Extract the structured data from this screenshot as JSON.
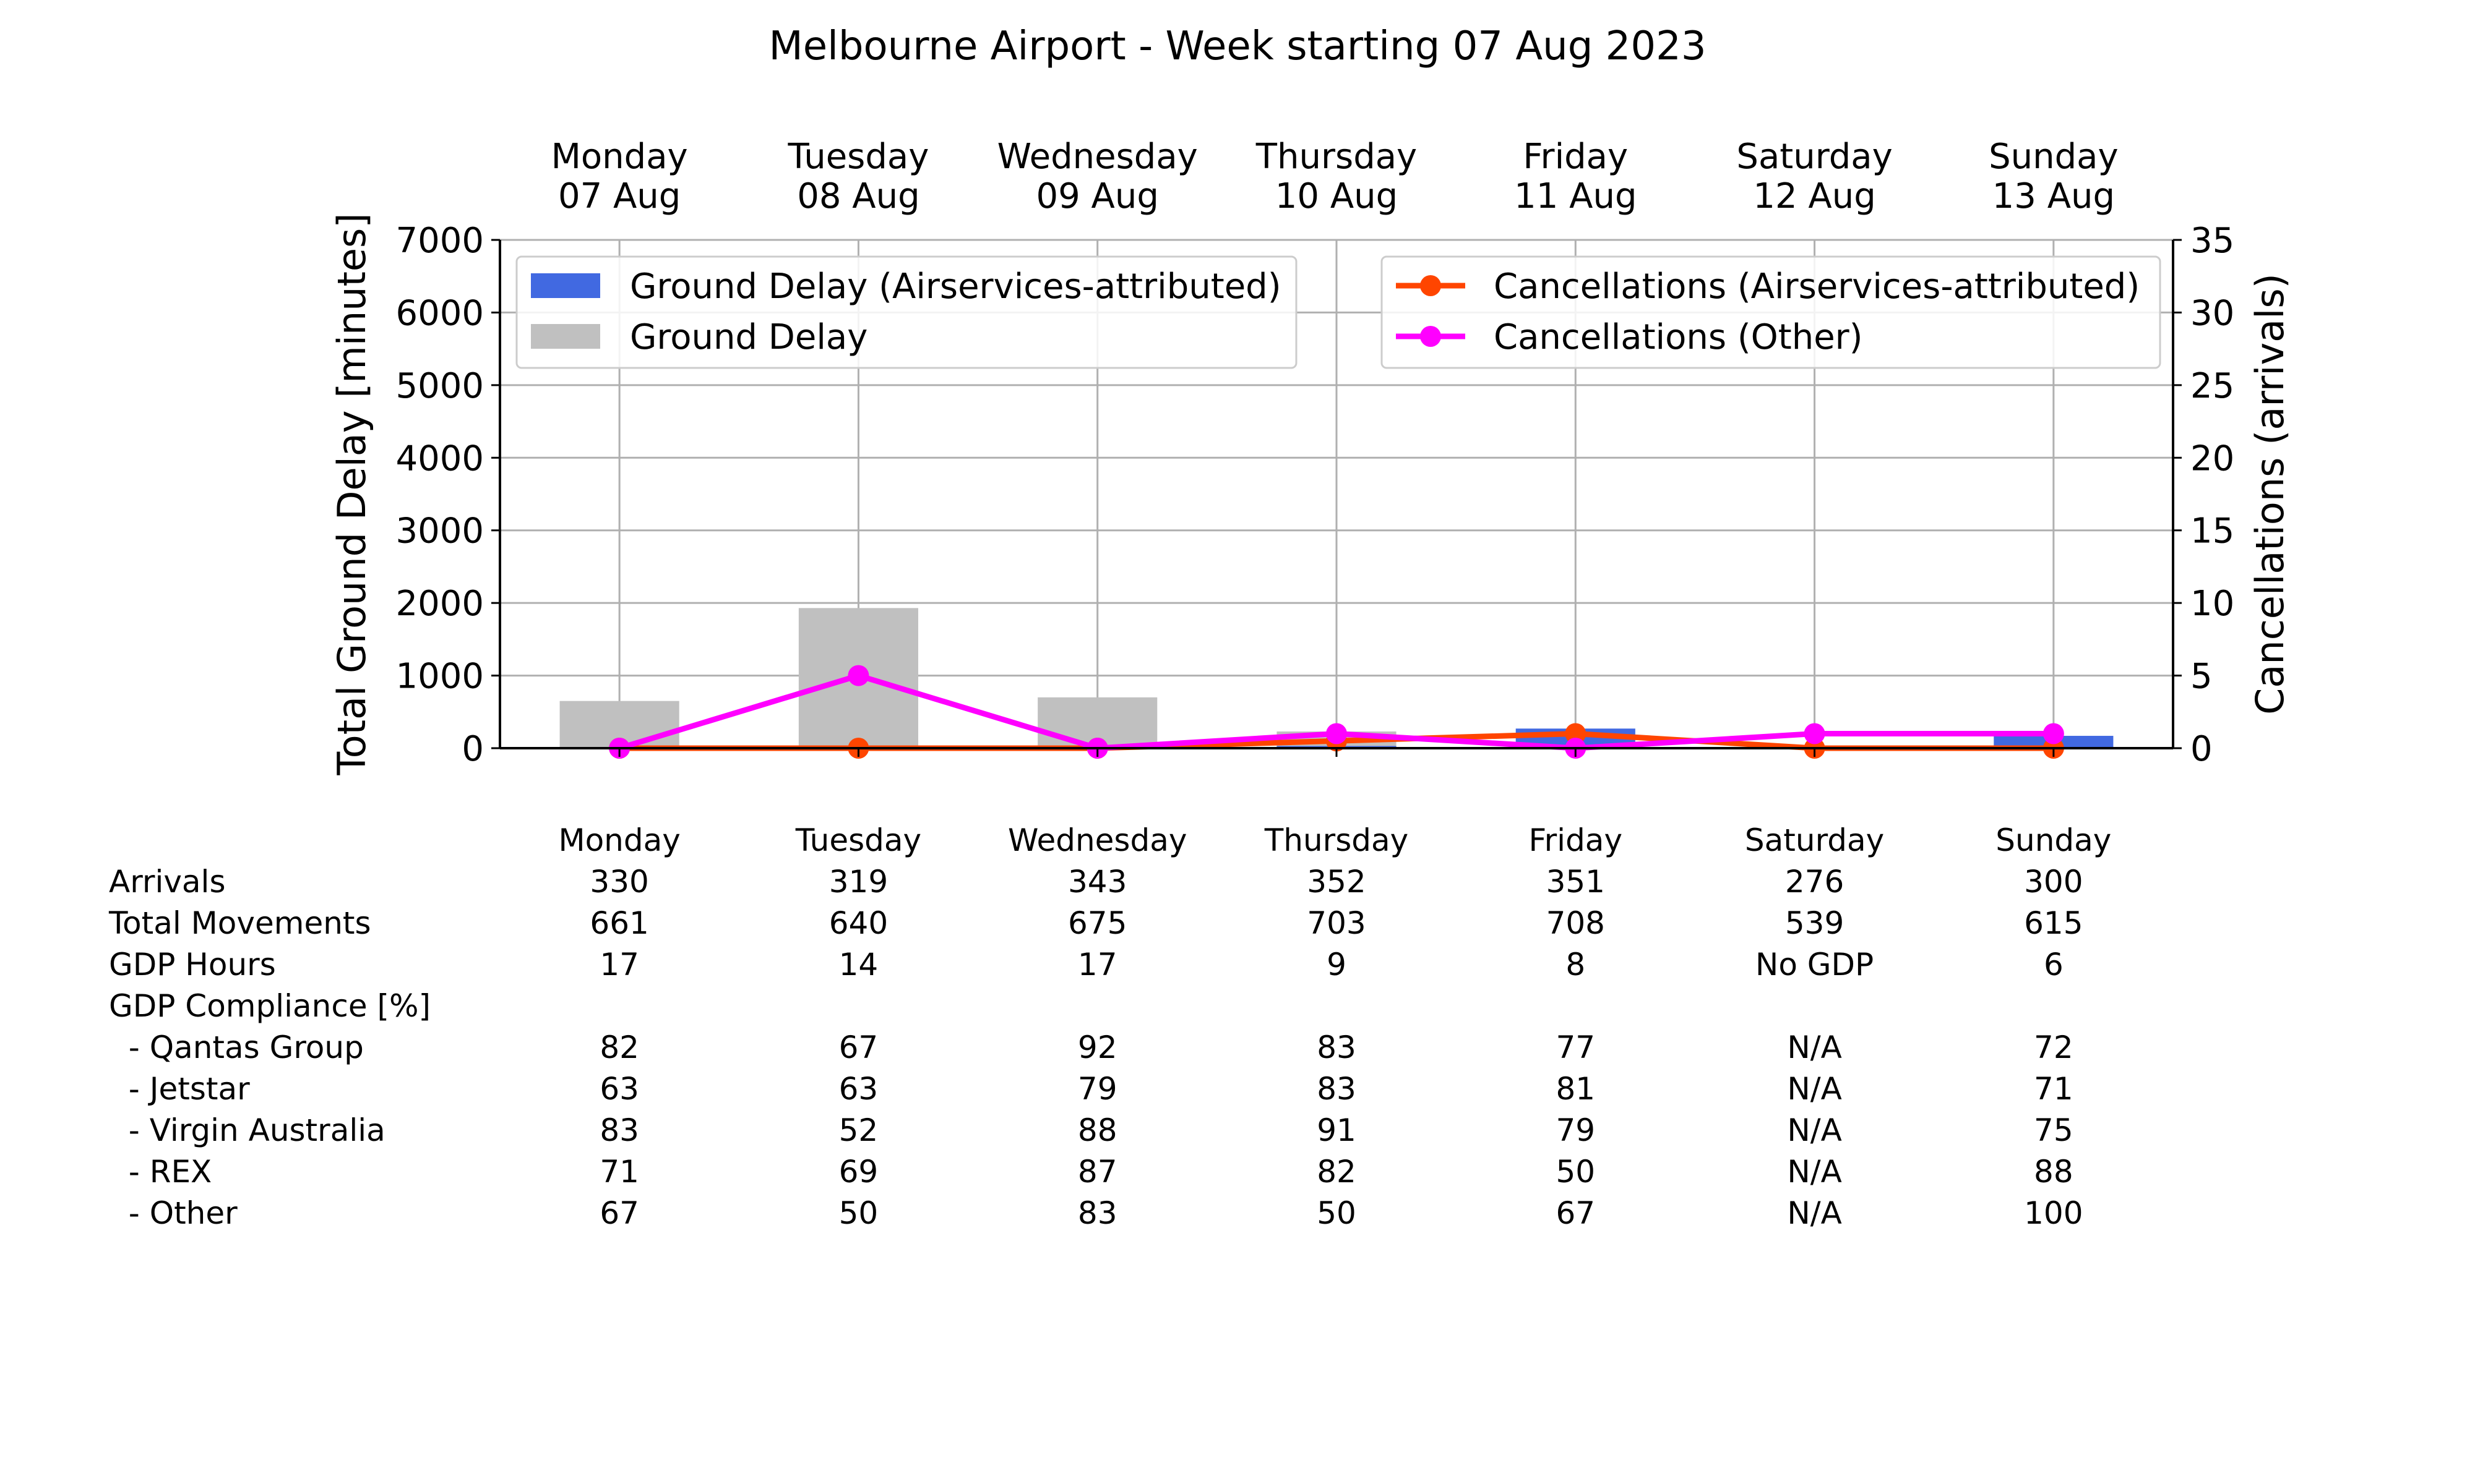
{
  "chart_data": {
    "type": "bar",
    "title": "Melbourne Airport - Week starting 07 Aug 2023",
    "categories": [
      "Monday",
      "Tuesday",
      "Wednesday",
      "Thursday",
      "Friday",
      "Saturday",
      "Sunday"
    ],
    "top_labels": [
      [
        "Monday",
        "07 Aug"
      ],
      [
        "Tuesday",
        "08 Aug"
      ],
      [
        "Wednesday",
        "09 Aug"
      ],
      [
        "Thursday",
        "10 Aug"
      ],
      [
        "Friday",
        "11 Aug"
      ],
      [
        "Saturday",
        "12 Aug"
      ],
      [
        "Sunday",
        "13 Aug"
      ]
    ],
    "ylabel": "Total Ground Delay [minutes]",
    "y2label": "Cancellations (arrivals)",
    "ylim": [
      0,
      7000
    ],
    "y2lim": [
      0,
      35
    ],
    "yticks": [
      "0",
      "1000",
      "2000",
      "3000",
      "4000",
      "5000",
      "6000",
      "7000"
    ],
    "y2ticks": [
      "0",
      "5",
      "10",
      "15",
      "20",
      "25",
      "30",
      "35"
    ],
    "grid": true,
    "bar_series": [
      {
        "name": "Ground Delay",
        "color": "#c0c0c0",
        "values": [
          650,
          1930,
          700,
          230,
          90,
          0,
          40
        ]
      },
      {
        "name": "Ground Delay (Airservices-attributed)",
        "color": "#4169e1",
        "values": [
          0,
          0,
          0,
          30,
          270,
          0,
          170
        ]
      }
    ],
    "line_series": [
      {
        "name": "Cancellations (Airservices-attributed)",
        "color": "#ff4500",
        "values": [
          0,
          0,
          0,
          0.5,
          1,
          0,
          0
        ]
      },
      {
        "name": "Cancellations (Other)",
        "color": "#ff00ff",
        "values": [
          0,
          5,
          0,
          1,
          0,
          1,
          1
        ]
      }
    ],
    "legend_left": [
      "Ground Delay (Airservices-attributed)",
      "Ground Delay"
    ],
    "legend_right": [
      "Cancellations (Airservices-attributed)",
      "Cancellations (Other)"
    ],
    "table": {
      "header": [
        "Monday",
        "Tuesday",
        "Wednesday",
        "Thursday",
        "Friday",
        "Saturday",
        "Sunday"
      ],
      "rows": [
        {
          "label": "Arrivals",
          "values": [
            "330",
            "319",
            "343",
            "352",
            "351",
            "276",
            "300"
          ]
        },
        {
          "label": "Total Movements",
          "values": [
            "661",
            "640",
            "675",
            "703",
            "708",
            "539",
            "615"
          ]
        },
        {
          "label": "GDP Hours",
          "values": [
            "17",
            "14",
            "17",
            "9",
            "8",
            "No GDP",
            "6"
          ]
        },
        {
          "label": "GDP Compliance [%]",
          "values": [
            "",
            "",
            "",
            "",
            "",
            "",
            ""
          ]
        },
        {
          "label": "  - Qantas Group",
          "values": [
            "82",
            "67",
            "92",
            "83",
            "77",
            "N/A",
            "72"
          ]
        },
        {
          "label": "  - Jetstar",
          "values": [
            "63",
            "63",
            "79",
            "83",
            "81",
            "N/A",
            "71"
          ]
        },
        {
          "label": "  - Virgin Australia",
          "values": [
            "83",
            "52",
            "88",
            "91",
            "79",
            "N/A",
            "75"
          ]
        },
        {
          "label": "  - REX",
          "values": [
            "71",
            "69",
            "87",
            "82",
            "50",
            "N/A",
            "88"
          ]
        },
        {
          "label": "  - Other",
          "values": [
            "67",
            "50",
            "83",
            "50",
            "67",
            "N/A",
            "100"
          ]
        }
      ]
    }
  }
}
